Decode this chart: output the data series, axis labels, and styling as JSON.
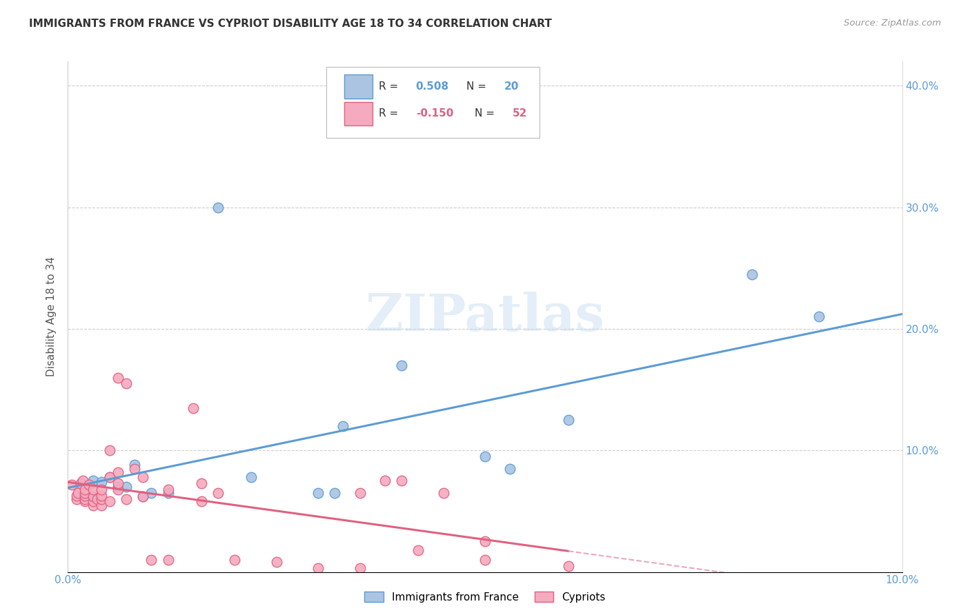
{
  "title": "IMMIGRANTS FROM FRANCE VS CYPRIOT DISABILITY AGE 18 TO 34 CORRELATION CHART",
  "source": "Source: ZipAtlas.com",
  "ylabel": "Disability Age 18 to 34",
  "xlim": [
    0.0,
    0.1
  ],
  "ylim": [
    0.0,
    0.42
  ],
  "x_ticks": [
    0.0,
    0.02,
    0.04,
    0.06,
    0.08,
    0.1
  ],
  "x_tick_labels": [
    "0.0%",
    "",
    "",
    "",
    "",
    "10.0%"
  ],
  "y_ticks": [
    0.0,
    0.1,
    0.2,
    0.3,
    0.4
  ],
  "y_tick_labels": [
    "",
    "10.0%",
    "20.0%",
    "30.0%",
    "40.0%"
  ],
  "blue_R": 0.508,
  "blue_N": 20,
  "pink_R": -0.15,
  "pink_N": 52,
  "blue_color": "#aac4e2",
  "pink_color": "#f5aabf",
  "blue_line_color": "#5b9bd5",
  "pink_line_color": "#e06080",
  "pink_dash_color": "#e8a8bc",
  "watermark": "ZIPatlas",
  "blue_points_x": [
    0.003,
    0.004,
    0.005,
    0.006,
    0.007,
    0.008,
    0.009,
    0.01,
    0.012,
    0.018,
    0.022,
    0.03,
    0.032,
    0.033,
    0.04,
    0.05,
    0.053,
    0.06,
    0.082,
    0.09
  ],
  "blue_points_y": [
    0.075,
    0.074,
    0.078,
    0.07,
    0.07,
    0.088,
    0.062,
    0.065,
    0.065,
    0.3,
    0.078,
    0.065,
    0.065,
    0.12,
    0.17,
    0.095,
    0.085,
    0.125,
    0.245,
    0.21
  ],
  "pink_points_x": [
    0.0005,
    0.001,
    0.001,
    0.0012,
    0.0015,
    0.0018,
    0.002,
    0.002,
    0.002,
    0.002,
    0.002,
    0.0025,
    0.003,
    0.003,
    0.003,
    0.003,
    0.0035,
    0.004,
    0.004,
    0.004,
    0.004,
    0.005,
    0.005,
    0.005,
    0.006,
    0.006,
    0.006,
    0.006,
    0.007,
    0.007,
    0.008,
    0.009,
    0.009,
    0.01,
    0.012,
    0.012,
    0.015,
    0.016,
    0.016,
    0.018,
    0.02,
    0.025,
    0.03,
    0.035,
    0.035,
    0.038,
    0.04,
    0.042,
    0.045,
    0.05,
    0.05,
    0.06
  ],
  "pink_points_y": [
    0.072,
    0.06,
    0.063,
    0.065,
    0.073,
    0.075,
    0.058,
    0.06,
    0.063,
    0.065,
    0.068,
    0.072,
    0.055,
    0.058,
    0.062,
    0.068,
    0.06,
    0.055,
    0.06,
    0.063,
    0.068,
    0.058,
    0.1,
    0.078,
    0.068,
    0.073,
    0.082,
    0.16,
    0.06,
    0.155,
    0.085,
    0.062,
    0.078,
    0.01,
    0.01,
    0.068,
    0.135,
    0.058,
    0.073,
    0.065,
    0.01,
    0.008,
    0.003,
    0.003,
    0.065,
    0.075,
    0.075,
    0.018,
    0.065,
    0.01,
    0.025,
    0.005
  ]
}
